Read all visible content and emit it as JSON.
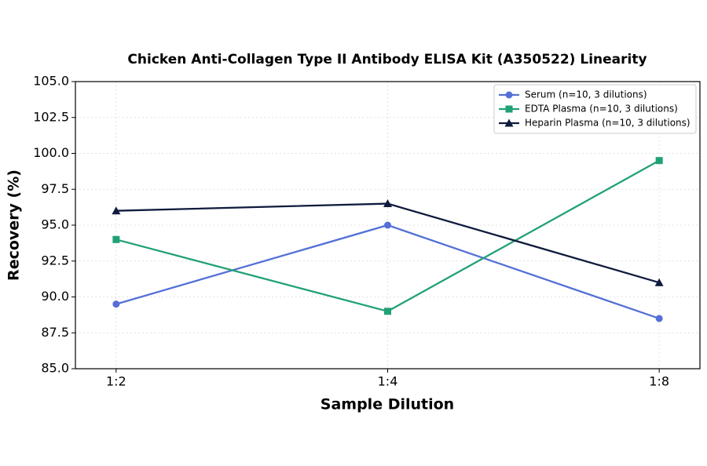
{
  "chart_data": {
    "type": "line",
    "title": "Chicken Anti-Collagen Type II Antibody ELISA Kit (A350522) Linearity",
    "x_label": "Sample Dilution",
    "y_label": "Recovery (%)",
    "categories": [
      "1:2",
      "1:4",
      "1:8"
    ],
    "series": [
      {
        "name": "Serum (n=10, 3 dilutions)",
        "color": "#5470d6",
        "marker": "circle",
        "values": [
          89.5,
          95.0,
          88.5
        ]
      },
      {
        "name": "EDTA Plasma (n=10, 3 dilutions)",
        "color": "#21a176",
        "marker": "square",
        "values": [
          94.0,
          89.0,
          99.5
        ]
      },
      {
        "name": "Heparin Plasma (n=10, 3 dilutions)",
        "color": "#0f1b3d",
        "marker": "triangle",
        "values": [
          96.0,
          96.5,
          91.0
        ]
      }
    ],
    "ylim": [
      85,
      105
    ],
    "yticks": [
      {
        "value": 85,
        "label": "85.0"
      },
      {
        "value": 87.5,
        "label": "87.5"
      },
      {
        "value": 90,
        "label": "90.0"
      },
      {
        "value": 92.5,
        "label": "92.5"
      },
      {
        "value": 95,
        "label": "95.0"
      },
      {
        "value": 97.5,
        "label": "97.5"
      },
      {
        "value": 100,
        "label": "100.0"
      },
      {
        "value": 102.5,
        "label": "102.5"
      },
      {
        "value": 105,
        "label": "105.0"
      }
    ],
    "grid": true,
    "legend": "upper right"
  }
}
